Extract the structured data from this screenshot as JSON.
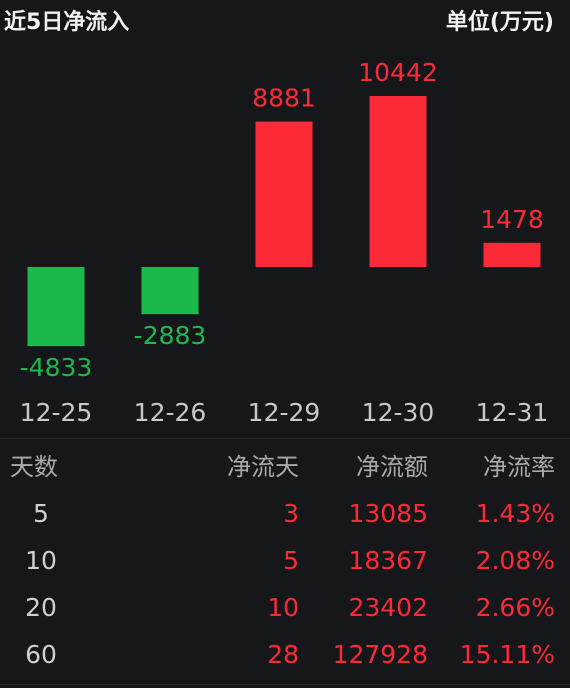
{
  "chart_data": {
    "type": "bar",
    "title": "近5日净流入",
    "subtitle": "单位(万元)",
    "categories": [
      "12-25",
      "12-26",
      "12-29",
      "12-30",
      "12-31"
    ],
    "values": [
      -4833,
      -2883,
      8881,
      10442,
      1478
    ],
    "up_color": "#fc2a36",
    "down_color": "#1bb84b"
  },
  "table": {
    "columns": [
      "天数",
      "净流天",
      "净流额",
      "净流率"
    ],
    "rows": [
      [
        5,
        3,
        13085,
        "1.43%"
      ],
      [
        10,
        5,
        18367,
        "2.08%"
      ],
      [
        20,
        10,
        23402,
        "2.66%"
      ],
      [
        60,
        28,
        127928,
        "15.11%"
      ]
    ]
  }
}
